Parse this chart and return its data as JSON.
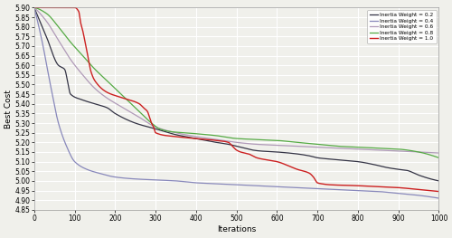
{
  "xlabel": "Iterations",
  "ylabel": "Best Cost",
  "xlim": [
    0,
    1000
  ],
  "ylim": [
    4.85,
    5.9
  ],
  "yticks": [
    4.85,
    4.9,
    4.95,
    5.0,
    5.05,
    5.1,
    5.15,
    5.2,
    5.25,
    5.3,
    5.35,
    5.4,
    5.45,
    5.5,
    5.55,
    5.6,
    5.65,
    5.7,
    5.75,
    5.8,
    5.85,
    5.9
  ],
  "xticks": [
    0,
    100,
    200,
    300,
    400,
    500,
    600,
    700,
    800,
    900,
    1000
  ],
  "background_color": "#f0f0eb",
  "grid_color": "#ffffff",
  "series": [
    {
      "label": "Inertia Weight = 0.2",
      "color": "#333344",
      "linewidth": 0.9,
      "kx": [
        0,
        30,
        60,
        75,
        90,
        120,
        150,
        180,
        200,
        250,
        300,
        350,
        400,
        450,
        480,
        500,
        520,
        540,
        560,
        600,
        650,
        680,
        700,
        750,
        800,
        850,
        870,
        900,
        920,
        950,
        980,
        1000
      ],
      "ky": [
        5.9,
        5.75,
        5.6,
        5.58,
        5.45,
        5.42,
        5.4,
        5.38,
        5.35,
        5.3,
        5.27,
        5.24,
        5.22,
        5.2,
        5.19,
        5.18,
        5.17,
        5.16,
        5.155,
        5.15,
        5.14,
        5.13,
        5.12,
        5.11,
        5.1,
        5.08,
        5.07,
        5.06,
        5.055,
        5.03,
        5.01,
        5.0
      ]
    },
    {
      "label": "Inertia Weight = 0.4",
      "color": "#8888bb",
      "linewidth": 0.9,
      "kx": [
        0,
        20,
        40,
        60,
        80,
        100,
        130,
        160,
        200,
        250,
        300,
        350,
        400,
        450,
        500,
        550,
        600,
        650,
        700,
        750,
        800,
        850,
        900,
        950,
        1000
      ],
      "ky": [
        5.9,
        5.72,
        5.5,
        5.3,
        5.18,
        5.1,
        5.06,
        5.04,
        5.02,
        5.01,
        5.005,
        5.0,
        4.99,
        4.985,
        4.98,
        4.975,
        4.97,
        4.965,
        4.96,
        4.955,
        4.95,
        4.945,
        4.935,
        4.925,
        4.91
      ]
    },
    {
      "label": "Inertia Weight = 0.6",
      "color": "#b09ab8",
      "linewidth": 0.9,
      "kx": [
        0,
        30,
        60,
        90,
        120,
        150,
        180,
        220,
        260,
        300,
        350,
        400,
        450,
        500,
        550,
        600,
        650,
        700,
        750,
        800,
        850,
        900,
        950,
        1000
      ],
      "ky": [
        5.9,
        5.83,
        5.73,
        5.63,
        5.55,
        5.48,
        5.43,
        5.38,
        5.33,
        5.28,
        5.25,
        5.23,
        5.215,
        5.2,
        5.19,
        5.185,
        5.18,
        5.175,
        5.17,
        5.165,
        5.16,
        5.155,
        5.15,
        5.145
      ]
    },
    {
      "label": "Inertia Weight = 0.8",
      "color": "#55aa44",
      "linewidth": 0.9,
      "kx": [
        0,
        30,
        60,
        90,
        120,
        150,
        180,
        220,
        260,
        290,
        310,
        340,
        370,
        400,
        450,
        500,
        550,
        600,
        650,
        700,
        750,
        800,
        850,
        900,
        950,
        1000
      ],
      "ky": [
        5.9,
        5.87,
        5.8,
        5.72,
        5.65,
        5.58,
        5.52,
        5.44,
        5.36,
        5.3,
        5.27,
        5.255,
        5.25,
        5.245,
        5.235,
        5.22,
        5.215,
        5.21,
        5.2,
        5.19,
        5.18,
        5.175,
        5.17,
        5.165,
        5.15,
        5.12
      ]
    },
    {
      "label": "Inertia Weight = 1.0",
      "color": "#cc2020",
      "linewidth": 1.0,
      "kx": [
        0,
        50,
        100,
        110,
        115,
        120,
        125,
        130,
        135,
        140,
        150,
        180,
        220,
        260,
        270,
        280,
        285,
        290,
        295,
        300,
        350,
        400,
        450,
        480,
        490,
        500,
        510,
        520,
        530,
        540,
        550,
        600,
        650,
        680,
        690,
        700,
        710,
        730,
        800,
        850,
        900,
        950,
        1000
      ],
      "ky": [
        5.9,
        5.9,
        5.9,
        5.88,
        5.82,
        5.78,
        5.73,
        5.68,
        5.62,
        5.57,
        5.52,
        5.46,
        5.43,
        5.4,
        5.38,
        5.36,
        5.33,
        5.3,
        5.28,
        5.25,
        5.23,
        5.22,
        5.21,
        5.2,
        5.18,
        5.16,
        5.15,
        5.145,
        5.14,
        5.13,
        5.12,
        5.1,
        5.06,
        5.04,
        5.02,
        4.99,
        4.985,
        4.98,
        4.975,
        4.97,
        4.965,
        4.955,
        4.945
      ]
    }
  ]
}
